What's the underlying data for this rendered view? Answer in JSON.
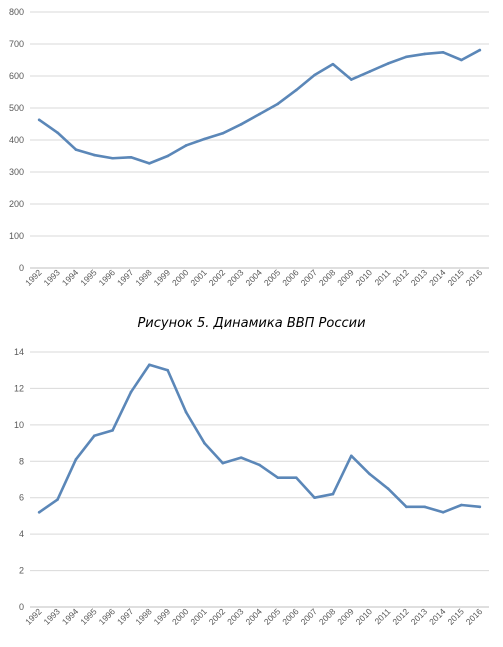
{
  "caption": "Рисунок 5. Динамика ВВП России",
  "chart_data": [
    {
      "type": "line",
      "title": "",
      "xlabel": "",
      "ylabel": "",
      "x": [
        "1992",
        "1993",
        "1994",
        "1995",
        "1996",
        "1997",
        "1998",
        "1999",
        "2000",
        "2001",
        "2002",
        "2003",
        "2004",
        "2005",
        "2006",
        "2007",
        "2008",
        "2009",
        "2010",
        "2011",
        "2012",
        "2013",
        "2014",
        "2015",
        "2016"
      ],
      "series": [
        {
          "values": [
            463,
            423,
            370,
            353,
            343,
            346,
            327,
            350,
            383,
            403,
            421,
            449,
            481,
            513,
            556,
            603,
            637,
            589,
            614,
            639,
            660,
            669,
            674,
            650,
            681
          ],
          "color": "#5b87b8"
        }
      ],
      "ylim": [
        0,
        800
      ],
      "yticks": [
        "0",
        "100",
        "200",
        "300",
        "400",
        "500",
        "600",
        "700",
        "800"
      ],
      "grid": true,
      "legend": "none"
    },
    {
      "type": "line",
      "title": "",
      "xlabel": "",
      "ylabel": "",
      "x": [
        "1992",
        "1993",
        "1994",
        "1995",
        "1996",
        "1997",
        "1998",
        "1999",
        "2000",
        "2001",
        "2002",
        "2003",
        "2004",
        "2005",
        "2006",
        "2007",
        "2008",
        "2009",
        "2010",
        "2011",
        "2012",
        "2013",
        "2014",
        "2015",
        "2016"
      ],
      "series": [
        {
          "values": [
            5.2,
            5.9,
            8.1,
            9.4,
            9.7,
            11.8,
            13.3,
            13.0,
            10.7,
            9.0,
            7.9,
            8.2,
            7.8,
            7.1,
            7.1,
            6.0,
            6.2,
            8.3,
            7.3,
            6.5,
            5.5,
            5.5,
            5.2,
            5.6,
            5.5
          ],
          "color": "#5b87b8"
        }
      ],
      "ylim": [
        0,
        14
      ],
      "yticks": [
        "0",
        "2",
        "4",
        "6",
        "8",
        "10",
        "12",
        "14"
      ],
      "grid": true,
      "legend": "none"
    }
  ]
}
